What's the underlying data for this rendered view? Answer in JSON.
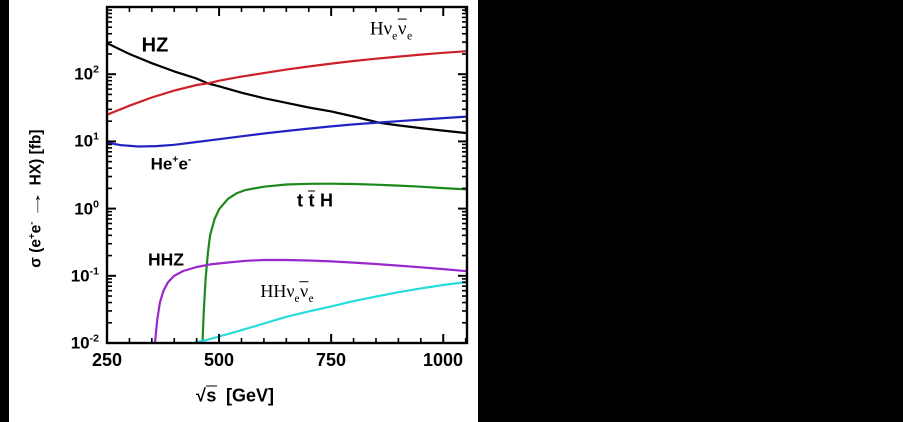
{
  "window": {
    "background": "#000000",
    "panel_background": "#ffffff"
  },
  "chart_data": {
    "type": "line",
    "title": "",
    "ylabel_rich": [
      {
        "t": "σ (e"
      },
      {
        "t": "+",
        "sup": true
      },
      {
        "t": "e"
      },
      {
        "t": "-",
        "sup": true
      },
      {
        "t": " "
      },
      {
        "t": "→",
        "stretch": true
      },
      {
        "t": " HX) [fb]"
      }
    ],
    "xlabel_rich": [
      {
        "t": "√"
      },
      {
        "t": "s",
        "bar": true
      },
      {
        "t": " [GeV]"
      }
    ],
    "x_axis": {
      "min": 250,
      "frame_max": 1053,
      "major_ticks": [
        250,
        500,
        750,
        1000
      ],
      "tick_labels": [
        "250",
        "500",
        "750",
        "1000"
      ],
      "minor_step": 50
    },
    "y_axis": {
      "scale": "log",
      "decade_min": -2,
      "decade_max": 3,
      "tick_labels_rich": [
        [
          {
            "t": "10"
          },
          {
            "t": "2",
            "sup": true
          }
        ],
        [
          {
            "t": "10"
          },
          {
            "t": "1",
            "sup": true
          }
        ],
        [
          {
            "t": "10"
          },
          {
            "t": "0",
            "sup": true
          }
        ],
        [
          {
            "t": "10"
          },
          {
            "t": "-1",
            "sup": true
          }
        ],
        [
          {
            "t": "10"
          },
          {
            "t": "-2",
            "sup": true
          }
        ]
      ],
      "tick_values": [
        100,
        10,
        1,
        0.1,
        0.01
      ]
    },
    "grid": false,
    "legend_position": "inline-labels",
    "series": [
      {
        "id": "hz",
        "name": "HZ",
        "color": "#000000",
        "label_rich": [
          {
            "t": "HZ"
          }
        ],
        "points": [
          [
            250,
            290
          ],
          [
            300,
            200
          ],
          [
            350,
            146
          ],
          [
            400,
            110
          ],
          [
            450,
            86
          ],
          [
            475,
            73
          ],
          [
            500,
            66
          ],
          [
            550,
            53
          ],
          [
            600,
            44
          ],
          [
            650,
            37.5
          ],
          [
            700,
            32
          ],
          [
            750,
            28
          ],
          [
            800,
            23.5
          ],
          [
            857,
            19
          ],
          [
            900,
            17.3
          ],
          [
            950,
            15.8
          ],
          [
            1000,
            14.5
          ],
          [
            1053,
            13.3
          ]
        ]
      },
      {
        "id": "hvv",
        "name": "Hνeν̄e",
        "color": "#cc2128",
        "label_rich": [
          {
            "t": "Hν"
          },
          {
            "t": "e",
            "sub": true
          },
          {
            "t": "ν",
            "bar": true
          },
          {
            "t": "e",
            "sub": true
          }
        ],
        "points": [
          [
            250,
            25
          ],
          [
            300,
            34
          ],
          [
            350,
            45
          ],
          [
            400,
            57
          ],
          [
            450,
            69
          ],
          [
            475,
            73
          ],
          [
            500,
            80
          ],
          [
            550,
            92
          ],
          [
            600,
            104
          ],
          [
            650,
            117
          ],
          [
            700,
            130
          ],
          [
            750,
            144
          ],
          [
            800,
            157
          ],
          [
            850,
            170
          ],
          [
            900,
            183
          ],
          [
            950,
            196
          ],
          [
            1000,
            208
          ],
          [
            1053,
            220
          ]
        ]
      },
      {
        "id": "hee",
        "name": "He+e-",
        "color": "#2222c4",
        "label_rich": [
          {
            "t": "He"
          },
          {
            "t": "+",
            "sup": true
          },
          {
            "t": "e"
          },
          {
            "t": "-",
            "sup": true
          }
        ],
        "points": [
          [
            250,
            9.6
          ],
          [
            280,
            8.8
          ],
          [
            320,
            8.4
          ],
          [
            360,
            8.5
          ],
          [
            400,
            8.9
          ],
          [
            450,
            9.8
          ],
          [
            500,
            10.8
          ],
          [
            550,
            11.9
          ],
          [
            600,
            13.1
          ],
          [
            650,
            14.3
          ],
          [
            700,
            15.5
          ],
          [
            750,
            16.7
          ],
          [
            800,
            17.9
          ],
          [
            857,
            19.1
          ],
          [
            900,
            20.0
          ],
          [
            950,
            21.1
          ],
          [
            1000,
            22.2
          ],
          [
            1053,
            23.4
          ]
        ]
      },
      {
        "id": "tth",
        "name": "tt̄H",
        "color": "#1b8a1b",
        "label_rich": [
          {
            "t": "t "
          },
          {
            "t": "t",
            "bar": true
          },
          {
            "t": " H"
          }
        ],
        "points": [
          [
            463,
            0.01
          ],
          [
            466,
            0.03
          ],
          [
            470,
            0.09
          ],
          [
            475,
            0.22
          ],
          [
            480,
            0.4
          ],
          [
            490,
            0.7
          ],
          [
            500,
            0.98
          ],
          [
            520,
            1.4
          ],
          [
            540,
            1.7
          ],
          [
            560,
            1.9
          ],
          [
            600,
            2.12
          ],
          [
            650,
            2.28
          ],
          [
            700,
            2.34
          ],
          [
            750,
            2.35
          ],
          [
            800,
            2.32
          ],
          [
            850,
            2.27
          ],
          [
            900,
            2.2
          ],
          [
            950,
            2.12
          ],
          [
            1000,
            2.02
          ],
          [
            1053,
            1.93
          ]
        ]
      },
      {
        "id": "hhz",
        "name": "HHZ",
        "color": "#9928cc",
        "label_rich": [
          {
            "t": "HHZ"
          }
        ],
        "points": [
          [
            357,
            0.01
          ],
          [
            362,
            0.022
          ],
          [
            368,
            0.04
          ],
          [
            376,
            0.06
          ],
          [
            386,
            0.08
          ],
          [
            400,
            0.1
          ],
          [
            420,
            0.118
          ],
          [
            450,
            0.135
          ],
          [
            480,
            0.148
          ],
          [
            520,
            0.158
          ],
          [
            560,
            0.167
          ],
          [
            600,
            0.172
          ],
          [
            650,
            0.172
          ],
          [
            700,
            0.169
          ],
          [
            750,
            0.164
          ],
          [
            800,
            0.157
          ],
          [
            850,
            0.15
          ],
          [
            900,
            0.142
          ],
          [
            950,
            0.134
          ],
          [
            1000,
            0.126
          ],
          [
            1053,
            0.117
          ]
        ]
      },
      {
        "id": "hhvv",
        "name": "HHνeν̄e",
        "color": "#25dcdc",
        "label_rich": [
          {
            "t": "HHν"
          },
          {
            "t": "e",
            "sub": true
          },
          {
            "t": "ν",
            "bar": true
          },
          {
            "t": "e",
            "sub": true
          }
        ],
        "points": [
          [
            443,
            0.01
          ],
          [
            470,
            0.011
          ],
          [
            500,
            0.0125
          ],
          [
            550,
            0.0155
          ],
          [
            600,
            0.0195
          ],
          [
            650,
            0.0245
          ],
          [
            700,
            0.0295
          ],
          [
            750,
            0.035
          ],
          [
            800,
            0.042
          ],
          [
            850,
            0.049
          ],
          [
            900,
            0.057
          ],
          [
            950,
            0.065
          ],
          [
            1000,
            0.073
          ],
          [
            1053,
            0.081
          ]
        ]
      }
    ]
  }
}
